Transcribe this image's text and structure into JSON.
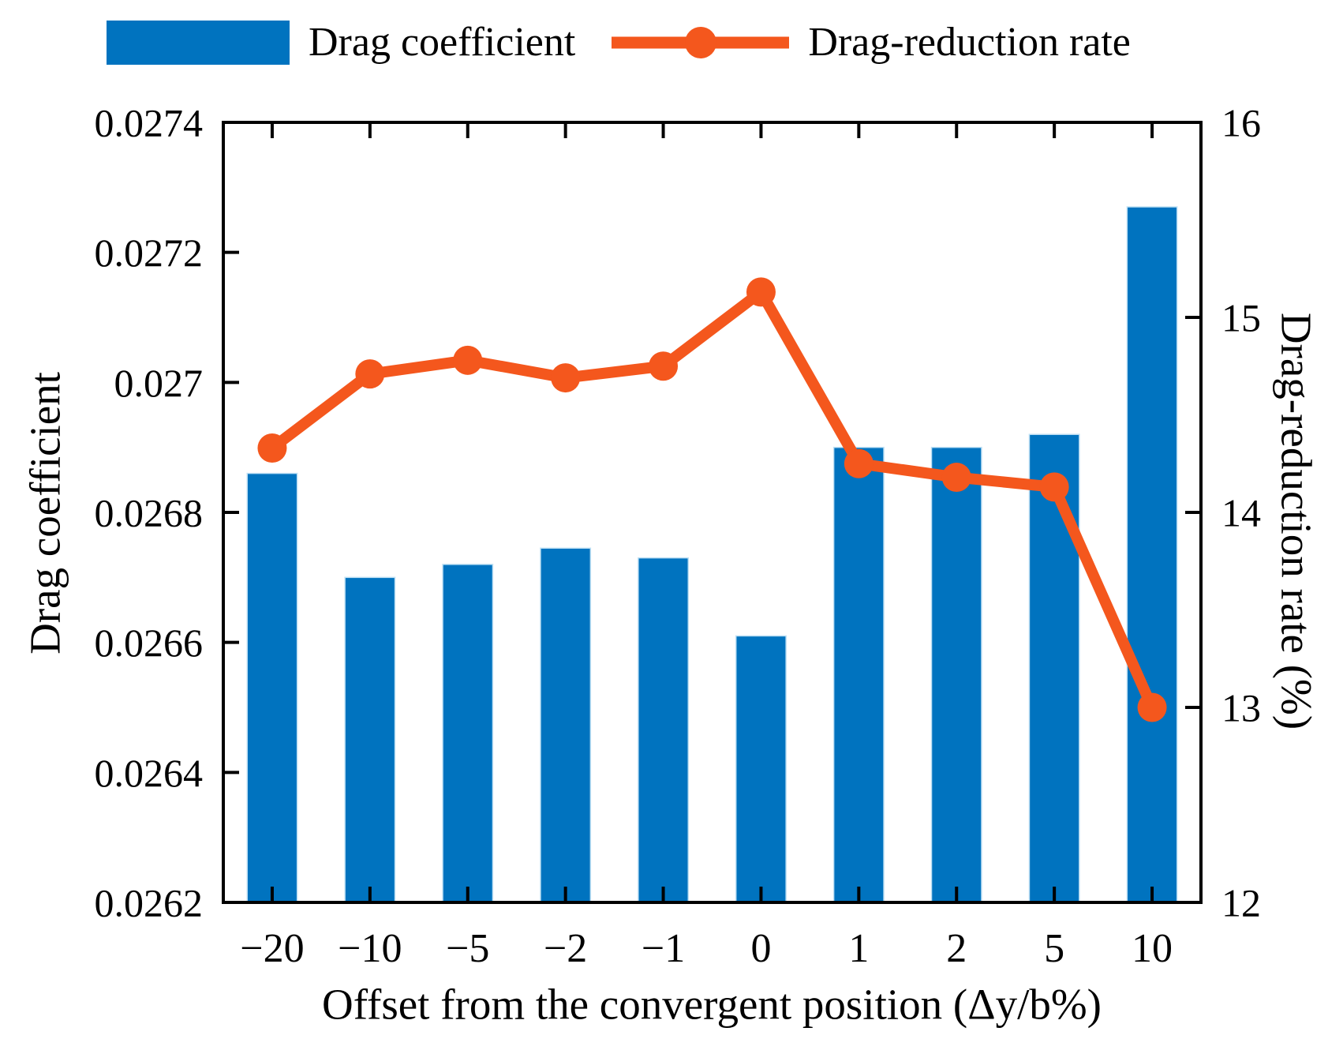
{
  "figure": {
    "background": "#ffffff",
    "frame_color": "#000000"
  },
  "chart_data": {
    "type": "bar",
    "title": "",
    "categories": [
      "−20",
      "−10",
      "−5",
      "−2",
      "−1",
      "0",
      "1",
      "2",
      "5",
      "10"
    ],
    "series": [
      {
        "name": "Drag coefficient",
        "type": "bar",
        "axis": "left",
        "color": "#0073BF",
        "edge_color": "#BFE0F4",
        "values": [
          0.02686,
          0.0267,
          0.02672,
          0.026745,
          0.02673,
          0.02661,
          0.0269,
          0.0269,
          0.02692,
          0.02727
        ]
      },
      {
        "name": "Drag-reduction rate",
        "type": "line",
        "axis": "right",
        "color": "#F4571D",
        "marker": "circle",
        "values": [
          14.33,
          14.71,
          14.78,
          14.69,
          14.75,
          15.13,
          14.25,
          14.18,
          14.13,
          13.0
        ]
      }
    ],
    "x_axis": {
      "label": "Offset from the convergent position (Δy/b%)"
    },
    "left_axis": {
      "label": "Drag coefficient",
      "min": 0.0262,
      "max": 0.0274,
      "ticks": [
        "0.0274",
        "0.0272",
        "0.027",
        "0.0268",
        "0.0266",
        "0.0264",
        "0.0262"
      ]
    },
    "right_axis": {
      "label": "Drag-reduction rate (%)",
      "min": 12,
      "max": 16,
      "ticks": [
        "16",
        "15",
        "14",
        "13",
        "12"
      ]
    },
    "grid": false,
    "legend_position": "top"
  }
}
